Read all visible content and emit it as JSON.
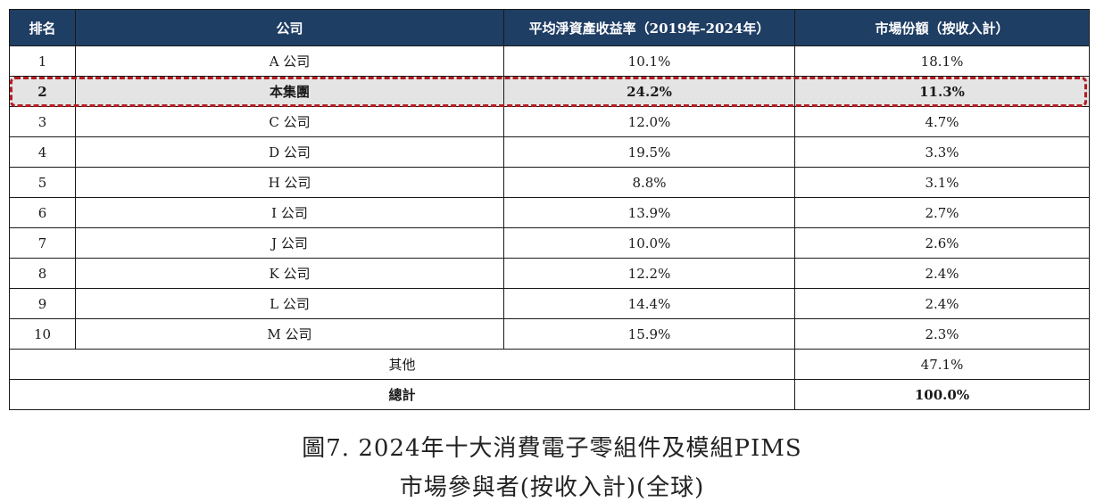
{
  "table": {
    "headers": [
      "排名",
      "公司",
      "平均淨資產收益率（2019年-2024年）",
      "市場份額（按收入計）"
    ],
    "rows": [
      {
        "rank": "1",
        "company": "A 公司",
        "roe": "10.1%",
        "share": "18.1%"
      },
      {
        "rank": "2",
        "company": "本集團",
        "roe": "24.2%",
        "share": "11.3%"
      },
      {
        "rank": "3",
        "company": "C 公司",
        "roe": "12.0%",
        "share": "4.7%"
      },
      {
        "rank": "4",
        "company": "D 公司",
        "roe": "19.5%",
        "share": "3.3%"
      },
      {
        "rank": "5",
        "company": "H 公司",
        "roe": "8.8%",
        "share": "3.1%"
      },
      {
        "rank": "6",
        "company": "I 公司",
        "roe": "13.9%",
        "share": "2.7%"
      },
      {
        "rank": "7",
        "company": "J 公司",
        "roe": "10.0%",
        "share": "2.6%"
      },
      {
        "rank": "8",
        "company": "K 公司",
        "roe": "12.2%",
        "share": "2.4%"
      },
      {
        "rank": "9",
        "company": "L 公司",
        "roe": "14.4%",
        "share": "2.4%"
      },
      {
        "rank": "10",
        "company": "M 公司",
        "roe": "15.9%",
        "share": "2.3%"
      }
    ],
    "others": {
      "label": "其他",
      "share": "47.1%"
    },
    "total": {
      "label": "總計",
      "share": "100.0%"
    }
  },
  "caption": {
    "line1": "圖7. 2024年十大消費電子零組件及模組PIMS",
    "line2": "市場參與者(按收入計)(全球)"
  },
  "colors": {
    "header_bg": "#1f3e64",
    "highlight_border": "#b41c22",
    "highlight_bg": "#e4e4e4"
  }
}
